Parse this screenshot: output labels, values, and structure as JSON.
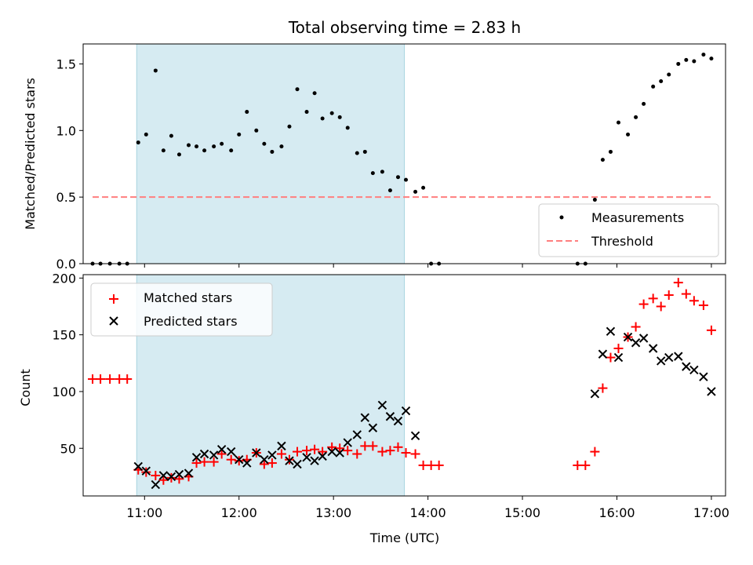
{
  "title": "Total observing time = 2.83 h",
  "top": {
    "ylabel": "Matched/Predicted stars",
    "ylim": [
      0,
      1.65
    ],
    "yticks": [
      0.0,
      0.5,
      1.0,
      1.5
    ],
    "ytick_labels": [
      "0.0",
      "0.5",
      "1.0",
      "1.5"
    ],
    "legend": {
      "location": "lower-right",
      "entries": [
        "Measurements",
        "Threshold"
      ]
    }
  },
  "bottom": {
    "ylabel": "Count",
    "xlabel": "Time (UTC)",
    "ylim": [
      8,
      203
    ],
    "yticks": [
      50,
      100,
      150,
      200
    ],
    "ytick_labels": [
      "50",
      "100",
      "150",
      "200"
    ],
    "legend": {
      "location": "upper-left",
      "entries": [
        "Matched stars",
        "Predicted stars"
      ]
    }
  },
  "x_axis": {
    "range": [
      "10:21",
      "17:09"
    ],
    "ticks": [
      "11:00",
      "12:00",
      "13:00",
      "14:00",
      "15:00",
      "16:00",
      "17:00"
    ]
  },
  "colors": {
    "measurements": "#000000",
    "threshold": "#ff7f7f",
    "matched": "#ff0000",
    "predicted": "#000000",
    "shade": "#add8e6"
  },
  "chart_data": [
    {
      "type": "scatter",
      "panel": "top",
      "shaded_interval": {
        "start": "10:55",
        "end": "13:45"
      },
      "series": [
        {
          "name": "Measurements",
          "marker": "dot",
          "points": [
            [
              "10:27",
              0
            ],
            [
              "10:32",
              0
            ],
            [
              "10:38",
              0
            ],
            [
              "10:44",
              0
            ],
            [
              "10:49",
              0
            ],
            [
              "10:56",
              0.91
            ],
            [
              "11:01",
              0.97
            ],
            [
              "11:07",
              1.45
            ],
            [
              "11:12",
              0.85
            ],
            [
              "11:17",
              0.96
            ],
            [
              "11:22",
              0.82
            ],
            [
              "11:28",
              0.89
            ],
            [
              "11:33",
              0.88
            ],
            [
              "11:38",
              0.85
            ],
            [
              "11:44",
              0.88
            ],
            [
              "11:49",
              0.9
            ],
            [
              "11:55",
              0.85
            ],
            [
              "12:00",
              0.97
            ],
            [
              "12:05",
              1.14
            ],
            [
              "12:11",
              1.0
            ],
            [
              "12:16",
              0.9
            ],
            [
              "12:21",
              0.84
            ],
            [
              "12:27",
              0.88
            ],
            [
              "12:32",
              1.03
            ],
            [
              "12:37",
              1.31
            ],
            [
              "12:43",
              1.14
            ],
            [
              "12:48",
              1.28
            ],
            [
              "12:53",
              1.09
            ],
            [
              "12:59",
              1.13
            ],
            [
              "13:04",
              1.1
            ],
            [
              "13:09",
              1.02
            ],
            [
              "13:15",
              0.83
            ],
            [
              "13:20",
              0.84
            ],
            [
              "13:25",
              0.68
            ],
            [
              "13:31",
              0.69
            ],
            [
              "13:36",
              0.55
            ],
            [
              "13:41",
              0.65
            ],
            [
              "13:46",
              0.63
            ],
            [
              "13:52",
              0.54
            ],
            [
              "13:57",
              0.57
            ],
            [
              "14:02",
              0
            ],
            [
              "14:07",
              0
            ],
            [
              "15:35",
              0
            ],
            [
              "15:40",
              0
            ],
            [
              "15:46",
              0.48
            ],
            [
              "15:51",
              0.78
            ],
            [
              "15:56",
              0.84
            ],
            [
              "16:01",
              1.06
            ],
            [
              "16:07",
              0.97
            ],
            [
              "16:12",
              1.1
            ],
            [
              "16:17",
              1.2
            ],
            [
              "16:23",
              1.33
            ],
            [
              "16:28",
              1.37
            ],
            [
              "16:33",
              1.42
            ],
            [
              "16:39",
              1.5
            ],
            [
              "16:44",
              1.53
            ],
            [
              "16:49",
              1.52
            ],
            [
              "16:55",
              1.57
            ],
            [
              "17:00",
              1.54
            ]
          ]
        },
        {
          "name": "Threshold",
          "style": "dashed-line",
          "points": [
            [
              "10:27",
              0.5
            ],
            [
              "17:00",
              0.5
            ]
          ]
        }
      ]
    },
    {
      "type": "scatter",
      "panel": "bottom",
      "shaded_interval": {
        "start": "10:55",
        "end": "13:45"
      },
      "series": [
        {
          "name": "Matched stars",
          "marker": "plus",
          "points": [
            [
              "10:27",
              111
            ],
            [
              "10:32",
              111
            ],
            [
              "10:38",
              111
            ],
            [
              "10:44",
              111
            ],
            [
              "10:49",
              111
            ],
            [
              "10:56",
              31
            ],
            [
              "11:01",
              29
            ],
            [
              "11:07",
              26
            ],
            [
              "11:12",
              22
            ],
            [
              "11:17",
              24
            ],
            [
              "11:22",
              23
            ],
            [
              "11:28",
              25
            ],
            [
              "11:33",
              37
            ],
            [
              "11:38",
              38
            ],
            [
              "11:44",
              38
            ],
            [
              "11:49",
              45
            ],
            [
              "11:55",
              40
            ],
            [
              "12:00",
              39
            ],
            [
              "12:05",
              40
            ],
            [
              "12:11",
              46
            ],
            [
              "12:16",
              36
            ],
            [
              "12:21",
              37
            ],
            [
              "12:27",
              45
            ],
            [
              "12:32",
              40
            ],
            [
              "12:37",
              47
            ],
            [
              "12:43",
              48
            ],
            [
              "12:48",
              49
            ],
            [
              "12:53",
              47
            ],
            [
              "12:59",
              51
            ],
            [
              "13:04",
              50
            ],
            [
              "13:09",
              48
            ],
            [
              "13:15",
              45
            ],
            [
              "13:20",
              52
            ],
            [
              "13:25",
              52
            ],
            [
              "13:31",
              47
            ],
            [
              "13:36",
              48
            ],
            [
              "13:41",
              51
            ],
            [
              "13:46",
              46
            ],
            [
              "13:52",
              45
            ],
            [
              "13:57",
              35
            ],
            [
              "14:02",
              35
            ],
            [
              "14:07",
              35
            ],
            [
              "15:35",
              35
            ],
            [
              "15:40",
              35
            ],
            [
              "15:46",
              47
            ],
            [
              "15:51",
              103
            ],
            [
              "15:56",
              130
            ],
            [
              "16:01",
              138
            ],
            [
              "16:07",
              148
            ],
            [
              "16:12",
              157
            ],
            [
              "16:17",
              177
            ],
            [
              "16:23",
              182
            ],
            [
              "16:28",
              175
            ],
            [
              "16:33",
              185
            ],
            [
              "16:39",
              196
            ],
            [
              "16:44",
              186
            ],
            [
              "16:49",
              180
            ],
            [
              "16:55",
              176
            ],
            [
              "17:00",
              154
            ]
          ]
        },
        {
          "name": "Predicted stars",
          "marker": "x",
          "points": [
            [
              "10:56",
              34
            ],
            [
              "11:01",
              30
            ],
            [
              "11:07",
              18
            ],
            [
              "11:12",
              26
            ],
            [
              "11:17",
              25
            ],
            [
              "11:22",
              27
            ],
            [
              "11:28",
              28
            ],
            [
              "11:33",
              42
            ],
            [
              "11:38",
              45
            ],
            [
              "11:44",
              44
            ],
            [
              "11:49",
              49
            ],
            [
              "11:55",
              47
            ],
            [
              "12:00",
              40
            ],
            [
              "12:05",
              37
            ],
            [
              "12:11",
              46
            ],
            [
              "12:16",
              40
            ],
            [
              "12:21",
              44
            ],
            [
              "12:27",
              52
            ],
            [
              "12:32",
              39
            ],
            [
              "12:37",
              36
            ],
            [
              "12:43",
              42
            ],
            [
              "12:48",
              39
            ],
            [
              "12:53",
              43
            ],
            [
              "12:59",
              47
            ],
            [
              "13:04",
              46
            ],
            [
              "13:09",
              55
            ],
            [
              "13:15",
              62
            ],
            [
              "13:20",
              77
            ],
            [
              "13:25",
              68
            ],
            [
              "13:31",
              88
            ],
            [
              "13:36",
              78
            ],
            [
              "13:41",
              74
            ],
            [
              "13:46",
              83
            ],
            [
              "13:52",
              61
            ],
            [
              "15:46",
              98
            ],
            [
              "15:51",
              133
            ],
            [
              "15:56",
              153
            ],
            [
              "16:01",
              130
            ],
            [
              "16:07",
              148
            ],
            [
              "16:12",
              143
            ],
            [
              "16:17",
              147
            ],
            [
              "16:23",
              138
            ],
            [
              "16:28",
              127
            ],
            [
              "16:33",
              130
            ],
            [
              "16:39",
              131
            ],
            [
              "16:44",
              122
            ],
            [
              "16:49",
              119
            ],
            [
              "16:55",
              113
            ],
            [
              "17:00",
              100
            ]
          ]
        }
      ]
    }
  ]
}
